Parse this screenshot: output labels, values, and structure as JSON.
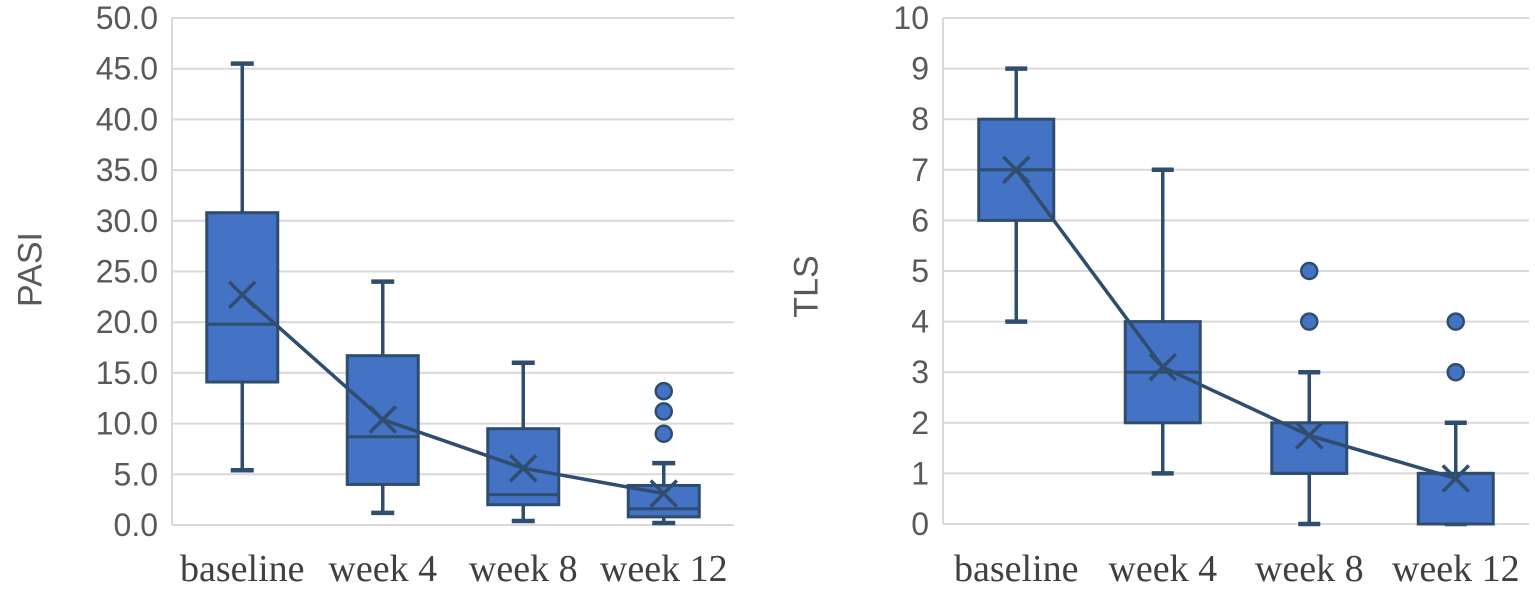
{
  "figure": {
    "left_axis_title": "PASI",
    "right_axis_title": "TLS"
  },
  "colors": {
    "box_fill": "#4472C4",
    "line": "#2F4D6E",
    "grid": "#D9D9D9",
    "tick_text": "#595959",
    "category_text": "#404040"
  },
  "chart_data": [
    {
      "type": "box",
      "ylabel": "PASI",
      "categories": [
        "baseline",
        "week 4",
        "week 8",
        "week 12"
      ],
      "ylim": [
        0,
        50
      ],
      "ytick_step": 5,
      "yticks": [
        "0.0",
        "5.0",
        "10.0",
        "15.0",
        "20.0",
        "25.0",
        "30.0",
        "35.0",
        "40.0",
        "45.0",
        "50.0"
      ],
      "grid": true,
      "boxes": [
        {
          "category": "baseline",
          "low": 5.4,
          "q1": 14.1,
          "median": 19.8,
          "q3": 30.8,
          "high": 45.5,
          "mean": 22.7,
          "outliers": []
        },
        {
          "category": "week 4",
          "low": 1.2,
          "q1": 4.0,
          "median": 8.7,
          "q3": 16.7,
          "high": 24.0,
          "mean": 10.4,
          "outliers": []
        },
        {
          "category": "week 8",
          "low": 0.4,
          "q1": 2.0,
          "median": 3.0,
          "q3": 9.5,
          "high": 16.0,
          "mean": 5.6,
          "outliers": []
        },
        {
          "category": "week 12",
          "low": 0.2,
          "q1": 0.8,
          "median": 1.6,
          "q3": 3.9,
          "high": 6.1,
          "mean": 3.1,
          "outliers": [
            9.0,
            11.2,
            13.2
          ]
        }
      ],
      "mean_marker": "x",
      "trend_line_through_means": true
    },
    {
      "type": "box",
      "ylabel": "TLS",
      "categories": [
        "baseline",
        "week 4",
        "week 8",
        "week 12"
      ],
      "ylim": [
        0,
        10
      ],
      "ytick_step": 1,
      "yticks": [
        "0",
        "1",
        "2",
        "3",
        "4",
        "5",
        "6",
        "7",
        "8",
        "9",
        "10"
      ],
      "grid": true,
      "boxes": [
        {
          "category": "baseline",
          "low": 4,
          "q1": 6,
          "median": 7,
          "q3": 8,
          "high": 9,
          "mean": 7.0,
          "outliers": []
        },
        {
          "category": "week 4",
          "low": 1,
          "q1": 2,
          "median": 3,
          "q3": 4,
          "high": 7,
          "mean": 3.1,
          "outliers": []
        },
        {
          "category": "week 8",
          "low": 0,
          "q1": 1,
          "median": 1,
          "q3": 2,
          "high": 3,
          "mean": 1.75,
          "outliers": [
            4,
            5
          ]
        },
        {
          "category": "week 12",
          "low": 0,
          "q1": 0,
          "median": 1,
          "q3": 1,
          "high": 2,
          "mean": 0.9,
          "outliers": [
            3,
            4
          ]
        }
      ],
      "mean_marker": "x",
      "trend_line_through_means": true
    }
  ]
}
